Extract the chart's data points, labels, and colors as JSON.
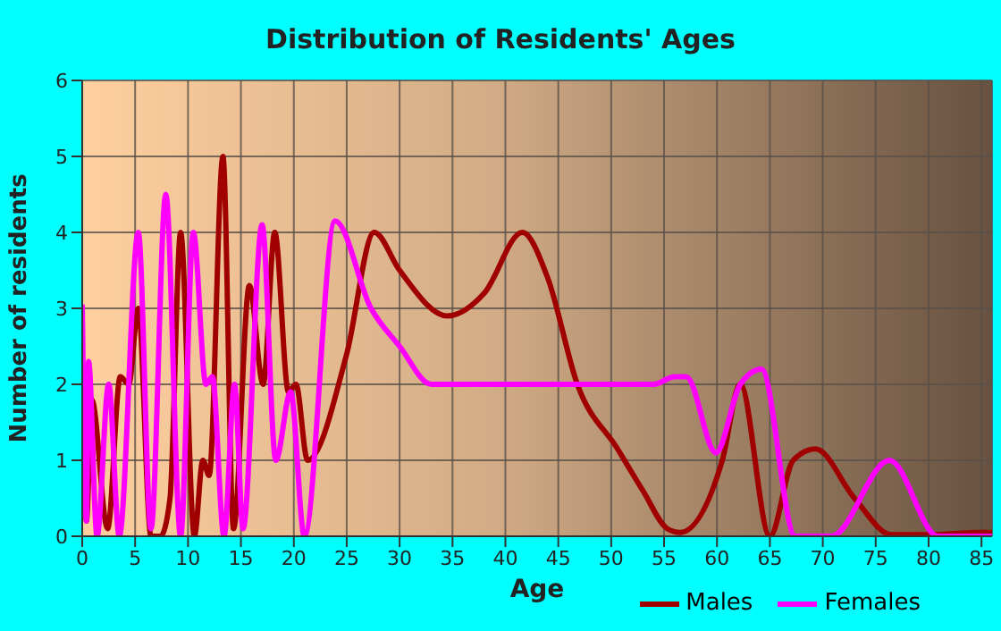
{
  "chart_data": {
    "type": "line",
    "title": "Distribution of Residents' Ages",
    "xlabel": "Age",
    "ylabel": "Number of residents",
    "xlim": [
      0,
      86
    ],
    "xticks": [
      0,
      5,
      10,
      15,
      20,
      25,
      30,
      35,
      40,
      45,
      50,
      55,
      60,
      65,
      70,
      75,
      80,
      85
    ],
    "ylim": [
      0,
      6
    ],
    "yticks": [
      0,
      1,
      2,
      3,
      4,
      5,
      6
    ],
    "grid": true,
    "legend": "bottom right",
    "marker": "none",
    "line_style": "solid",
    "series": [
      {
        "name": "Males",
        "color": "#a00000",
        "x": [
          0,
          0.4,
          0.9,
          2.4,
          3.6,
          4.4,
          5.3,
          6.5,
          7.4,
          8.3,
          9.3,
          10.6,
          11.4,
          12,
          13.3,
          14.3,
          15.8,
          17.1,
          18.2,
          19.5,
          20.2,
          21.3,
          25,
          27.6,
          30,
          34.5,
          38,
          41.6,
          44,
          46.8,
          50.6,
          53,
          55.3,
          56.5,
          60.5,
          62.2,
          65,
          67.2,
          69.3,
          73,
          76.5,
          80,
          85,
          86
        ],
        "values": [
          2,
          0.2,
          1.8,
          0.1,
          2.1,
          2,
          3,
          0,
          0,
          0.5,
          4,
          0,
          1,
          0.8,
          5,
          0.1,
          3.3,
          2,
          4,
          1.9,
          2,
          1,
          2.4,
          4,
          3.5,
          2.9,
          3.2,
          4,
          3.4,
          2,
          1.15,
          0.6,
          0.1,
          0.05,
          1,
          2,
          0,
          1,
          1.15,
          0.5,
          0.02,
          0.02,
          0.05,
          0.05
        ]
      },
      {
        "name": "Females",
        "color": "#ff00ff",
        "x": [
          0,
          0.4,
          0.6,
          1.4,
          2.5,
          3.5,
          5.3,
          6.5,
          7.9,
          9.3,
          10.5,
          11.7,
          12.3,
          13.4,
          14.4,
          15.2,
          17,
          18.3,
          19.7,
          21,
          23.9,
          27.3,
          30,
          33,
          36.3,
          40,
          45,
          50,
          54,
          56,
          57.1,
          59.9,
          62.2,
          64.2,
          67.4,
          70.8,
          76.3,
          80.9,
          86
        ],
        "values": [
          3.05,
          0.2,
          2.3,
          0,
          2,
          0,
          4,
          0.1,
          4.5,
          0,
          4,
          2,
          2.1,
          0,
          2,
          0.1,
          4.1,
          1,
          1.9,
          0,
          4.15,
          3,
          2.5,
          2,
          2,
          2,
          2,
          2,
          2,
          2.1,
          2.1,
          1.1,
          2,
          2.2,
          0,
          0,
          1,
          0,
          0
        ]
      }
    ]
  }
}
